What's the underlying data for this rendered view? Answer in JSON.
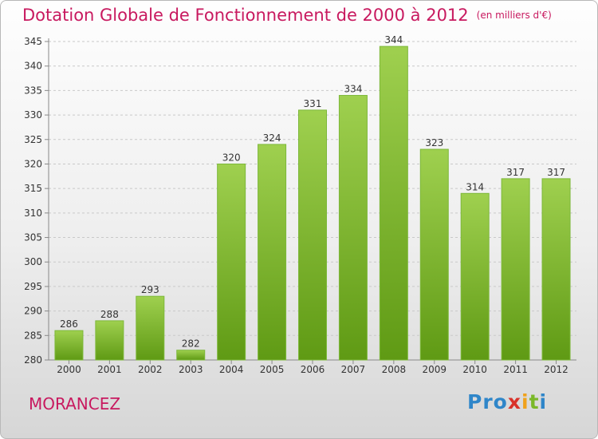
{
  "title": "Dotation Globale de Fonctionnement de 2000 à 2012",
  "subtitle": "(en milliers d'€)",
  "commune": "MORANCEZ",
  "logo": {
    "letters": [
      "P",
      "r",
      "o",
      "x",
      "i",
      "t",
      "i"
    ],
    "colors": [
      "#2f86c9",
      "#2f86c9",
      "#2f86c9",
      "#d9322a",
      "#f0a21c",
      "#7bb829",
      "#2f86c9"
    ]
  },
  "colors": {
    "title": "#c8195f",
    "bar_top": "#9fd04f",
    "bar_bottom": "#5f9a14"
  },
  "chart_data": {
    "type": "bar",
    "title": "Dotation Globale de Fonctionnement de 2000 à 2012",
    "subtitle": "(en milliers d'€)",
    "categories": [
      "2000",
      "2001",
      "2002",
      "2003",
      "2004",
      "2005",
      "2006",
      "2007",
      "2008",
      "2009",
      "2010",
      "2011",
      "2012"
    ],
    "values": [
      286,
      288,
      293,
      282,
      320,
      324,
      331,
      334,
      344,
      323,
      314,
      317,
      317
    ],
    "ylim": [
      280,
      345
    ],
    "yticks": [
      280,
      285,
      290,
      295,
      300,
      305,
      310,
      315,
      320,
      325,
      330,
      335,
      340,
      345
    ],
    "grid": "horizontal dashed",
    "xlabel": "",
    "ylabel": ""
  }
}
